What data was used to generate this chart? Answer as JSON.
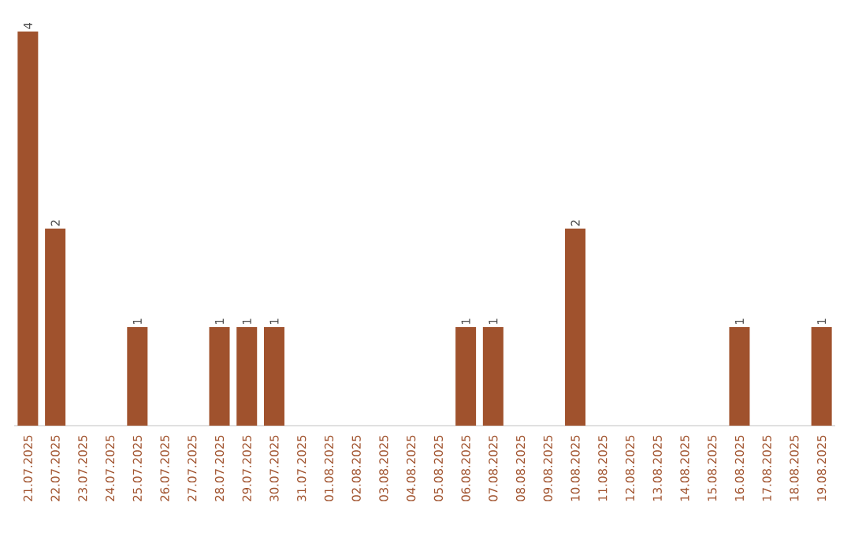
{
  "chart_data": {
    "type": "bar",
    "color": "#a0522d",
    "tick_labels": "x",
    "categories": [
      "21.07.2025",
      "22.07.2025",
      "23.07.2025",
      "24.07.2025",
      "25.07.2025",
      "26.07.2025",
      "27.07.2025",
      "28.07.2025",
      "29.07.2025",
      "30.07.2025",
      "31.07.2025",
      "01.08.2025",
      "02.08.2025",
      "03.08.2025",
      "04.08.2025",
      "05.08.2025",
      "06.08.2025",
      "07.08.2025",
      "08.08.2025",
      "09.08.2025",
      "10.08.2025",
      "11.08.2025",
      "12.08.2025",
      "13.08.2025",
      "14.08.2025",
      "15.08.2025",
      "16.08.2025",
      "17.08.2025",
      "18.08.2025",
      "19.08.2025"
    ],
    "values": [
      4,
      2,
      0,
      0,
      1,
      0,
      0,
      1,
      1,
      1,
      0,
      0,
      0,
      0,
      0,
      0,
      1,
      1,
      0,
      0,
      2,
      0,
      0,
      0,
      0,
      0,
      1,
      0,
      0,
      1
    ],
    "value_labels": [
      "4",
      "2",
      null,
      null,
      "1",
      null,
      null,
      "1",
      "1",
      "1",
      null,
      null,
      null,
      null,
      null,
      null,
      "1",
      "1",
      null,
      null,
      "2",
      null,
      null,
      null,
      null,
      null,
      "1",
      null,
      null,
      "1"
    ]
  }
}
